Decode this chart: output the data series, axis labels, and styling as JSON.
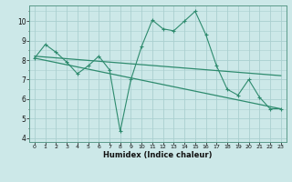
{
  "x_values": [
    0,
    1,
    2,
    3,
    4,
    5,
    6,
    7,
    8,
    9,
    10,
    11,
    12,
    13,
    14,
    15,
    16,
    17,
    18,
    19,
    20,
    21,
    22,
    23
  ],
  "y_main": [
    8.1,
    8.8,
    8.4,
    7.9,
    7.3,
    7.7,
    8.2,
    7.5,
    4.35,
    7.0,
    8.7,
    10.05,
    9.6,
    9.5,
    10.0,
    10.5,
    9.3,
    7.7,
    6.5,
    6.2,
    7.0,
    6.1,
    5.5,
    5.5
  ],
  "trend1_x": [
    0,
    23
  ],
  "trend1_y": [
    8.2,
    7.2
  ],
  "trend2_x": [
    0,
    23
  ],
  "trend2_y": [
    8.1,
    5.5
  ],
  "line_color": "#2e8b6e",
  "bg_color": "#cce8e8",
  "grid_color": "#aacfcf",
  "xlabel": "Humidex (Indice chaleur)",
  "xlim": [
    -0.5,
    23.5
  ],
  "ylim": [
    3.8,
    10.8
  ],
  "yticks": [
    4,
    5,
    6,
    7,
    8,
    9,
    10
  ],
  "xticks": [
    0,
    1,
    2,
    3,
    4,
    5,
    6,
    7,
    8,
    9,
    10,
    11,
    12,
    13,
    14,
    15,
    16,
    17,
    18,
    19,
    20,
    21,
    22,
    23
  ]
}
